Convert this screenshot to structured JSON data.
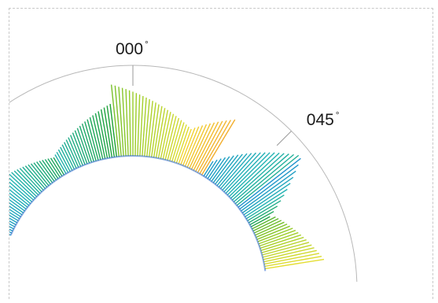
{
  "chart_data": {
    "type": "polar-ray",
    "title": "",
    "angle_unit": "degrees",
    "tick_labels": [
      {
        "bearing": 0,
        "text": "000",
        "suffix": "°"
      },
      {
        "bearing": 45,
        "text": "045",
        "suffix": "°"
      }
    ],
    "visible_bearing_range": [
      -66,
      82
    ],
    "grid": false,
    "legend": "none",
    "colorscale": [
      "#1f3fb8",
      "#1f8fd0",
      "#22b3b3",
      "#1ea02f",
      "#9ccd2a",
      "#f1e033",
      "#f29a2a"
    ],
    "series": [
      {
        "segments": [
          {
            "from": -66,
            "to": -30,
            "length_start": 0.62,
            "length_end": 0.22,
            "color_start": 0.22,
            "color_end": 0.45
          },
          {
            "from": -30,
            "to": -6,
            "length_start": 0.25,
            "length_end": 0.62,
            "color_start": 0.34,
            "color_end": 0.5
          },
          {
            "from": -6,
            "to": 20,
            "length_start": 0.82,
            "length_end": 0.42,
            "color_start": 0.62,
            "color_end": 0.8
          },
          {
            "from": 20,
            "to": 32,
            "length_start": 0.42,
            "length_end": 0.76,
            "color_start": 0.86,
            "color_end": 0.96
          },
          {
            "from": 32,
            "to": 52,
            "length_start": 0.2,
            "length_end": 0.94,
            "color_start": 0.22,
            "color_end": 0.38
          },
          {
            "from": 52,
            "to": 63,
            "length_start": 0.9,
            "length_end": 0.18,
            "color_start": 0.18,
            "color_end": 0.5
          },
          {
            "from": 63,
            "to": 82,
            "length_start": 0.3,
            "length_end": 0.7,
            "color_start": 0.58,
            "color_end": 0.82
          }
        ]
      }
    ]
  }
}
